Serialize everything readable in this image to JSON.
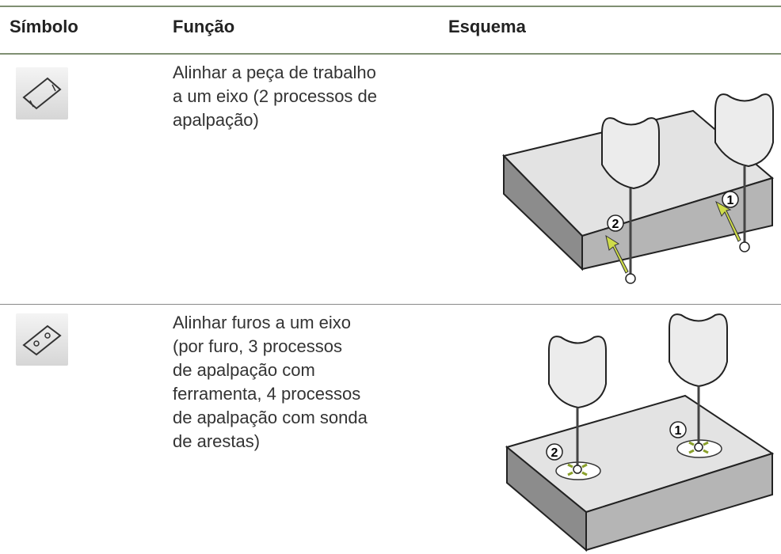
{
  "table": {
    "header": [
      "Símbolo",
      "Função",
      "Esquema"
    ],
    "rows": [
      {
        "function_lines": [
          "Alinhar a peça de trabalho",
          "a um eixo (2 processos de",
          "apalpação)"
        ],
        "callouts": [
          "1",
          "2"
        ]
      },
      {
        "function_lines": [
          "Alinhar furos a um eixo",
          "(por furo, 3 processos",
          "de apalpação com",
          "ferramenta, 4 processos",
          "de apalpação com sonda",
          "de arestas)"
        ],
        "callouts": [
          "1",
          "2"
        ]
      }
    ]
  }
}
